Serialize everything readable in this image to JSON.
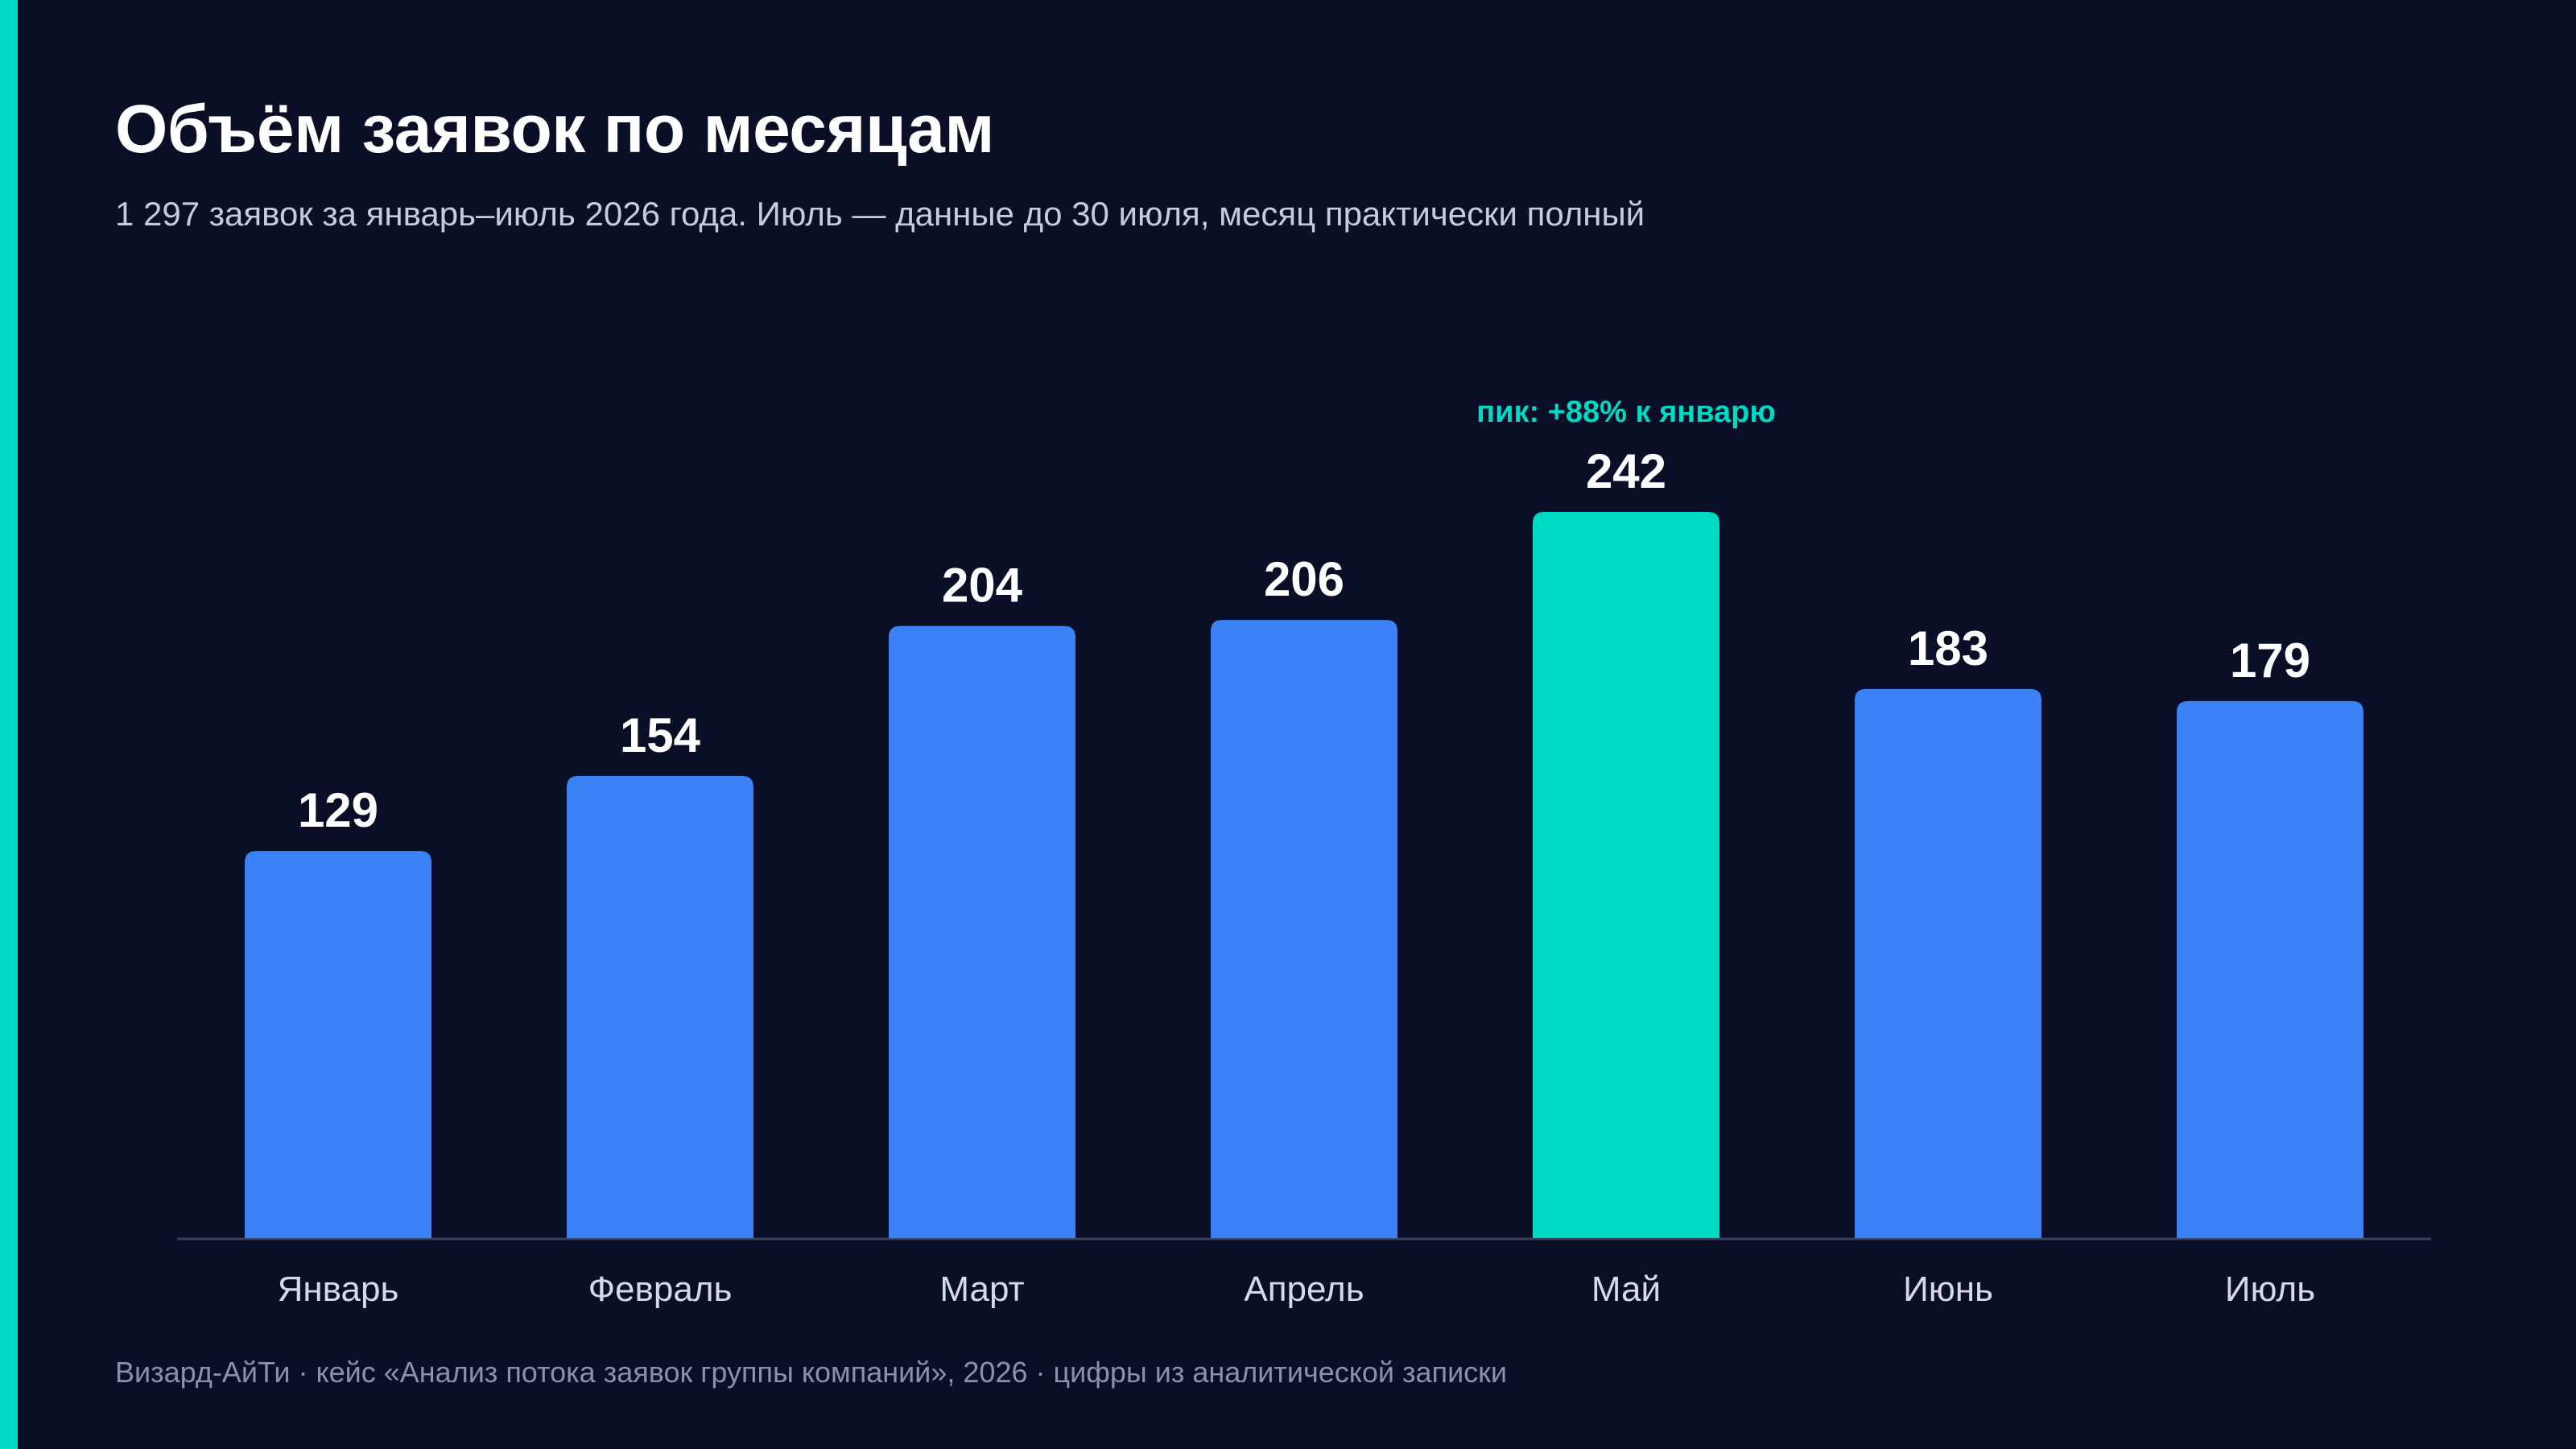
{
  "title": "Объём заявок по месяцам",
  "subtitle": "1 297 заявок за январь–июль 2026 года. Июль — данные до 30 июля, месяц практически полный",
  "footer": "Визард-АйТи · кейс «Анализ потока заявок группы компаний», 2026 · цифры из аналитической записки",
  "colors": {
    "background": "#0a0e27",
    "accent": "#00d9c4",
    "bar": "#3b82f6",
    "highlight_bar": "#00d9c4",
    "axis": "#3a4160",
    "value_label": "#ffffff",
    "category_label": "#d5d9ea"
  },
  "chart_data": {
    "type": "bar",
    "categories": [
      "Январь",
      "Февраль",
      "Март",
      "Апрель",
      "Май",
      "Июнь",
      "Июль"
    ],
    "values": [
      129,
      154,
      204,
      206,
      242,
      183,
      179
    ],
    "highlight_index": 4,
    "annotation": "пик: +88% к январю",
    "ylim": [
      0,
      242
    ],
    "grid": false,
    "legend": "none"
  }
}
